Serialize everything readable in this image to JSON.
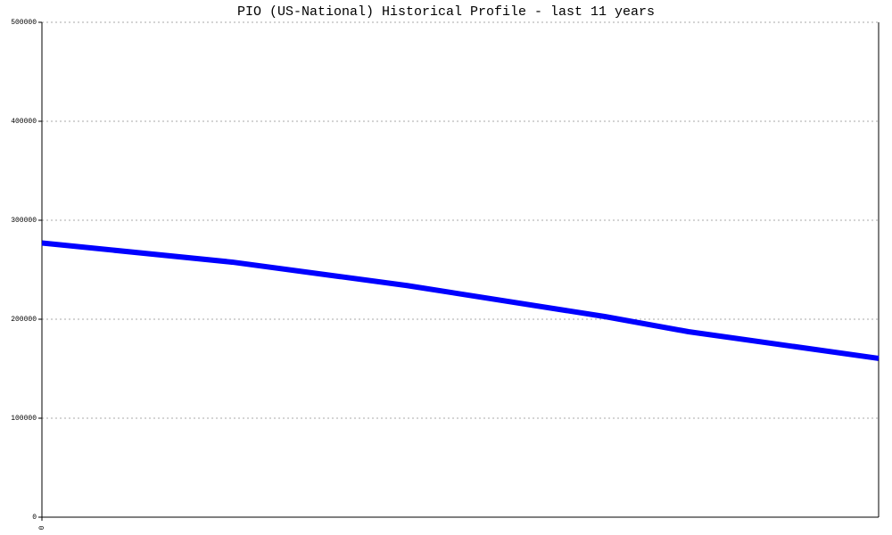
{
  "chart_data": {
    "type": "line",
    "title": "PIO (US-National) Historical Profile - last 11 years",
    "x": [
      0,
      2.5,
      4.8,
      7.4,
      8.5,
      11
    ],
    "series": [
      {
        "name": "PIO",
        "color": "#0000ff",
        "values": [
          277000,
          257700,
          234000,
          202700,
          187400,
          160400
        ]
      }
    ],
    "xlim": [
      0,
      11
    ],
    "xticks": [
      0
    ],
    "ylim": [
      0,
      500000
    ],
    "yticks": [
      0,
      100000,
      200000,
      300000,
      400000,
      500000
    ],
    "grid": true
  }
}
